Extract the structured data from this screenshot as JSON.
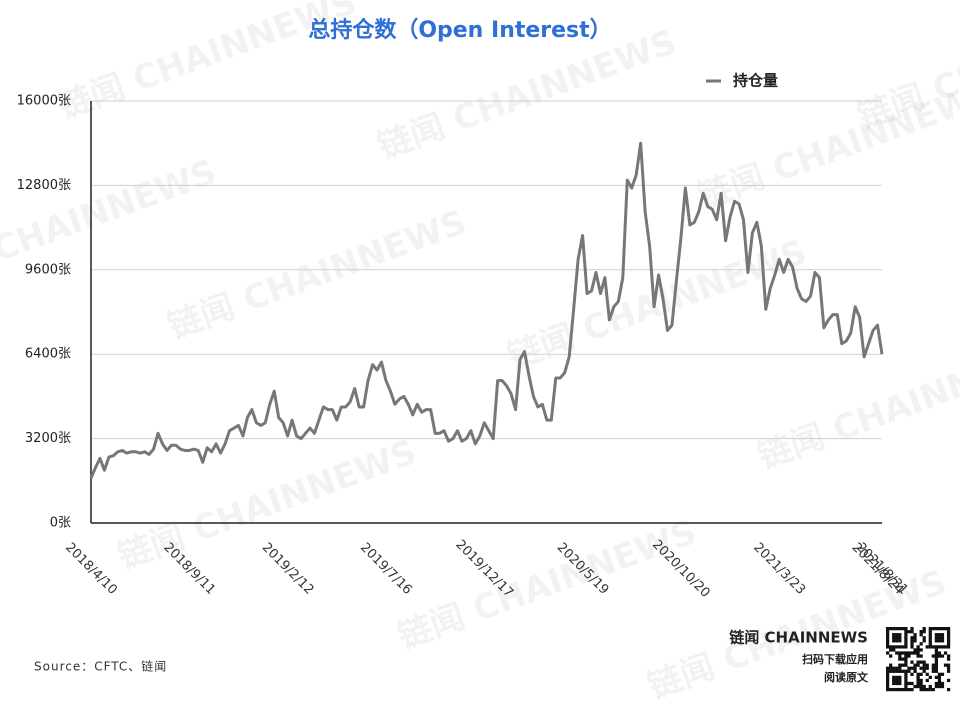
{
  "chart_data": {
    "type": "line",
    "title": "总持仓数（Open Interest）",
    "source": "Source：CFTC、链闻",
    "watermark": "链闻 CHAINNEWS",
    "footer": {
      "brand": "链闻 CHAINNEWS",
      "line1": "扫码下载应用",
      "line2": "阅读原文"
    },
    "legend": "upper right",
    "grid": true,
    "ylim": [
      0,
      16000
    ],
    "yticks": [
      {
        "value": 0,
        "label": "0张"
      },
      {
        "value": 3200,
        "label": "3200张"
      },
      {
        "value": 6400,
        "label": "6400张"
      },
      {
        "value": 9600,
        "label": "9600张"
      },
      {
        "value": 12800,
        "label": "12800张"
      },
      {
        "value": 16000,
        "label": "16000张"
      }
    ],
    "categories": [
      "2018/4/10",
      null,
      null,
      null,
      null,
      null,
      null,
      null,
      null,
      null,
      null,
      null,
      null,
      null,
      null,
      null,
      null,
      null,
      null,
      null,
      null,
      null,
      "2018/9/11",
      null,
      null,
      null,
      null,
      null,
      null,
      null,
      null,
      null,
      null,
      null,
      null,
      null,
      null,
      null,
      null,
      null,
      null,
      null,
      null,
      null,
      "2019/2/12",
      null,
      null,
      null,
      null,
      null,
      null,
      null,
      null,
      null,
      null,
      null,
      null,
      null,
      null,
      null,
      null,
      null,
      null,
      null,
      null,
      null,
      "2019/7/16",
      null,
      null,
      null,
      null,
      null,
      null,
      null,
      null,
      null,
      null,
      null,
      null,
      null,
      null,
      null,
      null,
      null,
      null,
      null,
      null,
      null,
      "2019/12/17",
      null,
      null,
      null,
      null,
      null,
      null,
      null,
      null,
      null,
      null,
      null,
      null,
      null,
      null,
      null,
      null,
      null,
      null,
      null,
      null,
      null,
      "2020/5/19",
      null,
      null,
      null,
      null,
      null,
      null,
      null,
      null,
      null,
      null,
      null,
      null,
      null,
      null,
      null,
      null,
      null,
      null,
      null,
      null,
      null,
      "2020/10/20",
      null,
      null,
      null,
      null,
      null,
      null,
      null,
      null,
      null,
      null,
      null,
      null,
      null,
      null,
      null,
      null,
      null,
      null,
      null,
      null,
      null,
      "2021/3/23",
      null,
      null,
      null,
      null,
      null,
      null,
      null,
      null,
      null,
      null,
      null,
      null,
      null,
      null,
      null,
      null,
      null,
      null,
      null,
      null,
      null,
      "2021/8/24",
      "2021/8/31"
    ],
    "series": [
      {
        "name": "持仓量",
        "color": "#777777",
        "values": [
          1700,
          2100,
          2450,
          2000,
          2500,
          2550,
          2700,
          2750,
          2650,
          2700,
          2700,
          2650,
          2700,
          2600,
          2800,
          3400,
          3000,
          2750,
          2950,
          2950,
          2800,
          2750,
          2750,
          2800,
          2750,
          2300,
          2850,
          2700,
          3000,
          2650,
          3000,
          3500,
          3600,
          3700,
          3300,
          4000,
          4300,
          3800,
          3700,
          3800,
          4500,
          5000,
          4000,
          3800,
          3300,
          3900,
          3300,
          3200,
          3400,
          3600,
          3400,
          3900,
          4400,
          4300,
          4300,
          3900,
          4400,
          4400,
          4600,
          5100,
          4400,
          4400,
          5400,
          6000,
          5800,
          6100,
          5400,
          5000,
          4500,
          4700,
          4800,
          4500,
          4100,
          4500,
          4200,
          4300,
          4300,
          3400,
          3400,
          3500,
          3100,
          3200,
          3500,
          3100,
          3200,
          3500,
          3000,
          3300,
          3800,
          3500,
          3200,
          5400,
          5400,
          5200,
          4900,
          4300,
          6200,
          6500,
          5600,
          4800,
          4400,
          4500,
          3900,
          3900,
          5500,
          5500,
          5700,
          6300,
          8100,
          10000,
          10900,
          8700,
          8800,
          9500,
          8700,
          9300,
          7700,
          8200,
          8400,
          9300,
          13000,
          12700,
          13200,
          14400,
          11800,
          10500,
          8200,
          9400,
          8500,
          7300,
          7500,
          9200,
          10800,
          12700,
          11300,
          11400,
          11800,
          12500,
          12000,
          11900,
          11500,
          12500,
          10700,
          11600,
          12200,
          12100,
          11500,
          9500,
          11000,
          11400,
          10500,
          8100,
          8900,
          9400,
          10000,
          9500,
          10000,
          9700,
          8900,
          8500,
          8400,
          8600,
          9500,
          9300,
          7400,
          7700,
          7900,
          7900,
          6800,
          6900,
          7200,
          8200,
          7800,
          6300,
          6800,
          7300,
          7500,
          6400
        ]
      }
    ]
  }
}
